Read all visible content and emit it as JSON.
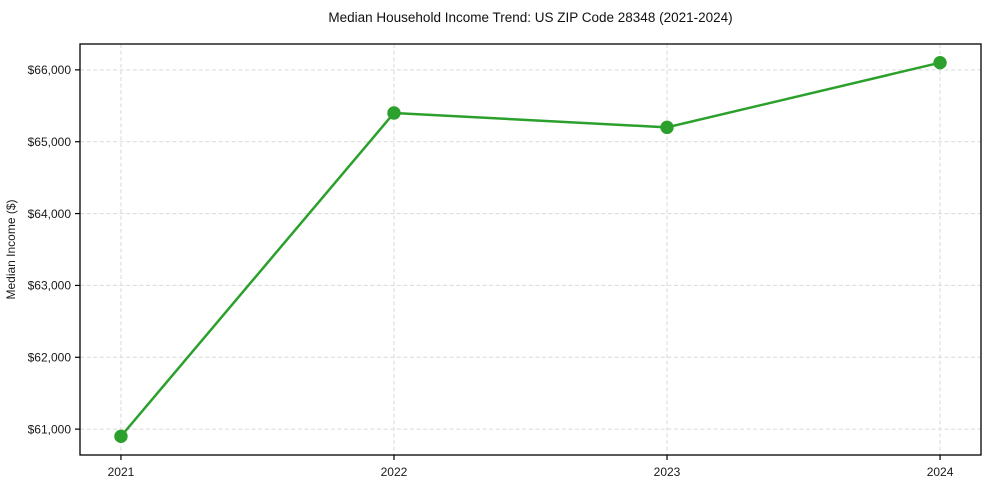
{
  "figure": {
    "background": "#ffffff"
  },
  "chart_data": {
    "type": "line",
    "title": "Median Household Income Trend: US ZIP Code 28348 (2021-2024)",
    "xlabel": "",
    "ylabel": "Median Income ($)",
    "x": [
      2021,
      2022,
      2023,
      2024
    ],
    "xtick_labels": [
      "2021",
      "2022",
      "2023",
      "2024"
    ],
    "values": [
      60900,
      65400,
      65200,
      66100
    ],
    "yticks": [
      61000,
      62000,
      63000,
      64000,
      65000,
      66000
    ],
    "ytick_labels": [
      "$61,000",
      "$62,000",
      "$63,000",
      "$64,000",
      "$65,000",
      "$66,000"
    ],
    "ylim": [
      60640,
      66360
    ],
    "xlim": [
      2020.85,
      2024.15
    ],
    "line_color": "#2ca02c",
    "line_width": 2.5,
    "marker": "circle",
    "marker_size": 6.7,
    "grid": "dashed",
    "grid_color": "#d9d9d9",
    "axis_color": "#000000",
    "text_color": "#1a1a1a",
    "legend": "none"
  }
}
